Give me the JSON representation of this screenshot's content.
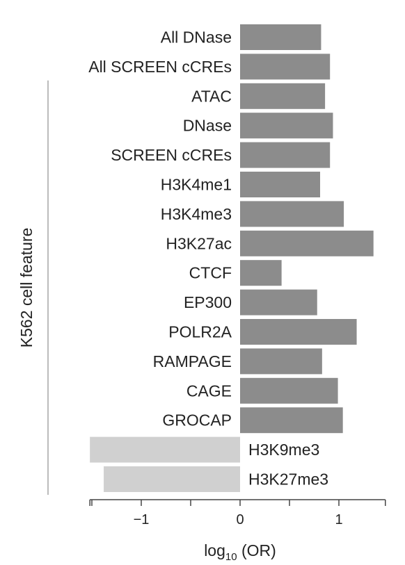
{
  "chart_data": {
    "type": "bar",
    "orientation": "horizontal",
    "categories": [
      "All DNase",
      "All SCREEN cCREs",
      "ATAC",
      "DNase",
      "SCREEN cCREs",
      "H3K4me1",
      "H3K4me3",
      "H3K27ac",
      "CTCF",
      "EP300",
      "POLR2A",
      "RAMPAGE",
      "CAGE",
      "GROCAP",
      "H3K9me3",
      "H3K27me3"
    ],
    "values": [
      0.82,
      0.91,
      0.86,
      0.94,
      0.91,
      0.81,
      1.05,
      1.35,
      0.42,
      0.78,
      1.18,
      0.83,
      0.99,
      1.04,
      -1.52,
      -1.38
    ],
    "xlabel_main": "log",
    "xlabel_sub": "10",
    "xlabel_suffix": " (OR)",
    "ylabel": "K562 cell feature",
    "xlim": [
      -1.52,
      1.47
    ],
    "xticks": [
      -1,
      0,
      1
    ],
    "xtick_labels": [
      "−1",
      "0",
      "1"
    ],
    "minor_xticks": [
      -1.5,
      -0.5,
      0.5
    ],
    "grouped_range": [
      2,
      15
    ],
    "colors": {
      "positive": "#8c8c8c",
      "negative": "#d0d0d0",
      "axis": "#444444",
      "bracket": "#bbbbbb",
      "text": "#222222"
    }
  }
}
